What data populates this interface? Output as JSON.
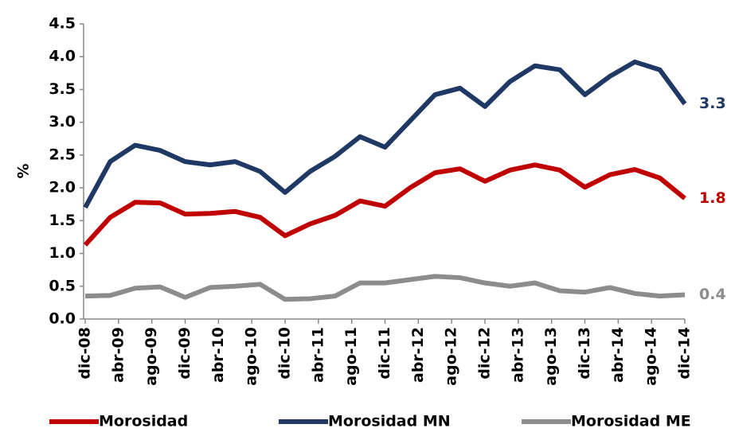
{
  "chart_data": {
    "type": "line",
    "y_label": "%",
    "xticks": [
      "dic-08",
      "abr-09",
      "ago-09",
      "dic-09",
      "abr-10",
      "ago-10",
      "dic-10",
      "abr-11",
      "ago-11",
      "dic-11",
      "abr-12",
      "ago-12",
      "dic-12",
      "abr-13",
      "ago-13",
      "dic-13",
      "abr-14",
      "ago-14",
      "dic-14"
    ],
    "series": [
      {
        "name": "Morosidad",
        "color": "#c00000",
        "values": [
          1.13,
          1.55,
          1.78,
          1.77,
          1.6,
          1.61,
          1.64,
          1.55,
          1.27,
          1.45,
          1.58,
          1.8,
          1.72,
          2.0,
          2.23,
          2.29,
          2.1,
          2.27,
          2.35,
          2.27,
          2.01,
          2.2,
          2.28,
          2.15,
          1.84
        ],
        "value_labels": [
          null,
          null,
          null,
          null,
          null,
          null,
          null,
          null,
          null,
          null,
          null,
          null,
          null,
          null,
          null,
          null,
          null,
          null,
          null,
          null,
          null,
          null,
          null,
          null,
          "1.8"
        ]
      },
      {
        "name": "Morosidad MN",
        "color": "#1f3864",
        "values": [
          1.7,
          2.4,
          2.65,
          2.57,
          2.4,
          2.35,
          2.4,
          2.25,
          1.93,
          2.25,
          2.48,
          2.78,
          2.62,
          3.02,
          3.42,
          3.52,
          3.24,
          3.62,
          3.86,
          3.8,
          3.42,
          3.7,
          3.92,
          3.8,
          3.28
        ],
        "value_labels": [
          null,
          null,
          null,
          null,
          null,
          null,
          null,
          null,
          null,
          null,
          null,
          null,
          null,
          null,
          null,
          null,
          null,
          null,
          null,
          null,
          null,
          null,
          null,
          null,
          "3.3"
        ]
      },
      {
        "name": "Morosidad ME",
        "color": "#8c8c8c",
        "values": [
          0.35,
          0.36,
          0.47,
          0.49,
          0.33,
          0.48,
          0.5,
          0.53,
          0.3,
          0.31,
          0.35,
          0.55,
          0.55,
          0.6,
          0.65,
          0.63,
          0.55,
          0.5,
          0.55,
          0.43,
          0.41,
          0.48,
          0.39,
          0.35,
          0.37
        ],
        "value_labels": [
          null,
          null,
          null,
          null,
          null,
          null,
          null,
          null,
          null,
          null,
          null,
          null,
          null,
          null,
          null,
          null,
          null,
          null,
          null,
          null,
          null,
          null,
          null,
          null,
          "0.4"
        ]
      }
    ],
    "ylim": [
      0,
      4.5
    ],
    "yticks": [
      {
        "value": 0,
        "label": "0.0"
      },
      0.5,
      {
        "value": 1,
        "label": "1.0"
      },
      1.5,
      {
        "value": 2,
        "label": "2.0"
      },
      2.5,
      {
        "value": 3,
        "label": "3.0"
      },
      3.5,
      {
        "value": 4,
        "label": "4.0"
      },
      4.5
    ],
    "grid": false
  }
}
